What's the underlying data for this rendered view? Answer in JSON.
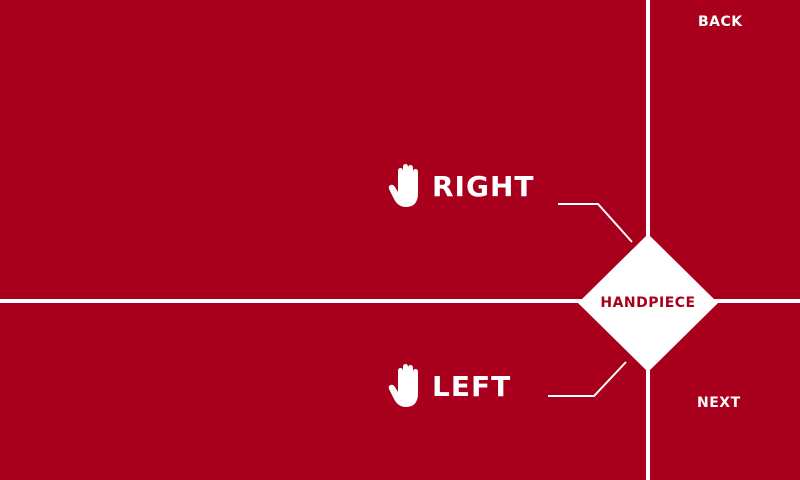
{
  "colors": {
    "background": "#a8001c",
    "foreground": "#ffffff"
  },
  "nav": {
    "back_label": "BACK",
    "next_label": "NEXT"
  },
  "options": {
    "right": {
      "label": "RIGHT",
      "icon": "hand-icon"
    },
    "left": {
      "label": "LEFT",
      "icon": "hand-icon"
    }
  },
  "center": {
    "label": "HANDPIECE"
  }
}
